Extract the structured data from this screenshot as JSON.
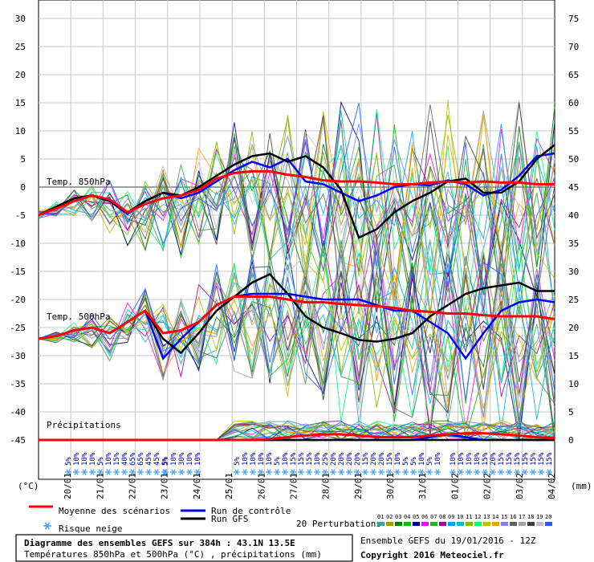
{
  "chart_data": {
    "type": "line",
    "title": "Diagramme des ensembles GEFS sur 384h : 43.1N 13.5E",
    "subtitle": "Températures 850hPa et 500hPa (°C) , précipitations (mm)",
    "left_axis": {
      "label": "(°C)",
      "ticks": [
        30,
        25,
        20,
        15,
        10,
        5,
        0,
        -5,
        -10,
        -15,
        -20,
        -25,
        -30,
        -35,
        -40,
        -45
      ]
    },
    "right_axis": {
      "label": "(mm)",
      "ticks": [
        75,
        70,
        65,
        60,
        55,
        50,
        45,
        40,
        35,
        30,
        25,
        20,
        15,
        10,
        5,
        0
      ]
    },
    "dates": [
      "20/01",
      "21/01",
      "22/01",
      "23/01",
      "24/01",
      "25/01",
      "26/01",
      "27/01",
      "28/01",
      "29/01",
      "30/01",
      "31/01",
      "01/02",
      "02/02",
      "03/02",
      "04/02"
    ],
    "panel_labels": {
      "t850": "Temp. 850hPa",
      "t500": "Temp. 500hPa",
      "precip": "Précipitations"
    },
    "snow_risk": [
      [
        "5%",
        "10%",
        "10%",
        "10%",
        "5%",
        "10%",
        "15%",
        "40%",
        "65%",
        "65%",
        "45%",
        "45%",
        "5%"
      ],
      [
        "5%",
        "10%",
        "30%",
        "10%",
        "10%"
      ],
      [
        "5%",
        "10%",
        "10%",
        "10%",
        "10%",
        "5%",
        "10%",
        "15%",
        "15%",
        "15%",
        "10%",
        "25%",
        "20%",
        "20%",
        "20%",
        "20%",
        "15%",
        "20%",
        "20%",
        "15%",
        "10%",
        "5%",
        "5%",
        "10%",
        "5%",
        "10%"
      ],
      [
        "10%",
        "10%",
        "10%",
        "10%",
        "15%",
        "20%",
        "15%",
        "15%",
        "15%",
        "15%",
        "15%",
        "15%",
        "15%"
      ]
    ],
    "series": [
      {
        "name": "Moyenne des scénarios",
        "color": "#ff0000",
        "t850": [
          -5,
          -3.8,
          -2.5,
          -1.5,
          -2.2,
          -4.5,
          -3,
          -2,
          -1.5,
          -0.5,
          1.5,
          2.5,
          2.8,
          2.8,
          2.2,
          1.8,
          1.2,
          1,
          1,
          0.8,
          0.5,
          0.5,
          0.8,
          1,
          0.8,
          1,
          0.8,
          0.8,
          0.5,
          0.5
        ],
        "t500": [
          -27,
          -26.5,
          -25.5,
          -25,
          -26,
          -24,
          -22,
          -26,
          -25.5,
          -24,
          -21,
          -19.5,
          -19.5,
          -19.5,
          -20,
          -20.5,
          -20.5,
          -20.8,
          -21,
          -21.2,
          -21.5,
          -22,
          -22.2,
          -22.5,
          -22.5,
          -22.8,
          -23,
          -23,
          -23,
          -23.5
        ],
        "precip": [
          0,
          0,
          0,
          0,
          0,
          0,
          0,
          0,
          0,
          0,
          0,
          0,
          0,
          0.2,
          0.5,
          0.8,
          1,
          1,
          0.8,
          0.5,
          0.5,
          0.5,
          0.8,
          1,
          1.2,
          1.2,
          1,
          0.8,
          0.5,
          0.3
        ]
      },
      {
        "name": "Run de contrôle",
        "color": "#0000ff",
        "t850": [
          -5,
          -3.5,
          -2,
          -1.5,
          -2.5,
          -4.8,
          -2.5,
          -1,
          -2,
          -1,
          1,
          3,
          4.5,
          3.5,
          5,
          1,
          0.5,
          -1,
          -2.5,
          -1.5,
          0,
          0.5,
          0.3,
          1.2,
          0.5,
          -1.5,
          -0.5,
          2,
          5.5,
          6
        ],
        "t500": [
          -27,
          -26.5,
          -25.5,
          -25,
          -26,
          -24,
          -22,
          -30.5,
          -27,
          -24,
          -21,
          -19.5,
          -19,
          -19,
          -19,
          -19.5,
          -20,
          -20,
          -20,
          -21,
          -22,
          -22,
          -24,
          -26,
          -30.5,
          -26,
          -22,
          -20.5,
          -20,
          -20.5
        ],
        "precip": [
          0,
          0,
          0,
          0,
          0,
          0,
          0,
          0,
          0,
          0,
          0,
          0,
          0,
          0,
          0,
          0,
          0,
          0,
          0,
          0,
          0,
          0,
          0.5,
          1,
          0.5,
          0,
          0,
          0,
          0,
          0
        ]
      },
      {
        "name": "Run GFS",
        "color": "#000000",
        "t850": [
          -5,
          -3.5,
          -2,
          -1.5,
          -2.5,
          -4.5,
          -2.5,
          -1,
          -1.5,
          0,
          2,
          4,
          5.5,
          6,
          4.5,
          5.5,
          3.5,
          -0.5,
          -9,
          -7.5,
          -4.5,
          -2.5,
          -1,
          1,
          1.5,
          -1,
          -1,
          1,
          5,
          7.5
        ],
        "t500": [
          -27,
          -26.5,
          -25.5,
          -25,
          -26,
          -24,
          -22,
          -27,
          -29.5,
          -26,
          -22,
          -19.5,
          -17,
          -15.5,
          -19,
          -23,
          -25,
          -26,
          -27.2,
          -27.5,
          -27,
          -26,
          -23,
          -21,
          -19,
          -18,
          -17.5,
          -17,
          -18.5,
          -18.5
        ],
        "precip": [
          0,
          0,
          0,
          0,
          0,
          0,
          0,
          0,
          0,
          0,
          0,
          0,
          0,
          0,
          0,
          0,
          0,
          0,
          0,
          0,
          0,
          0,
          0,
          0,
          0,
          0,
          0,
          0,
          0,
          0
        ]
      }
    ],
    "legend": {
      "mean": "Moyenne des scénarios",
      "control": "Run de contrôle",
      "gfs": "Run GFS",
      "snow": "Risque neige",
      "perturbations": "20 Perturbations",
      "perturbation_ids": [
        "01",
        "02",
        "03",
        "04",
        "05",
        "06",
        "07",
        "08",
        "09",
        "10",
        "11",
        "12",
        "13",
        "14",
        "15",
        "16",
        "17",
        "18",
        "19",
        "20"
      ],
      "perturbation_colors": [
        "#40a0a0",
        "#a0a000",
        "#008000",
        "#00c000",
        "#000080",
        "#ff00ff",
        "#40a040",
        "#a000a0",
        "#00a0ff",
        "#00c0c0",
        "#80c000",
        "#00ff80",
        "#c0c000",
        "#ffa000",
        "#8080ff",
        "#606060",
        "#a0a0a0",
        "#404040",
        "#c0c0c0",
        "#2060ff"
      ]
    },
    "footer": {
      "title": "Diagramme des ensembles GEFS sur 384h : 43.1N 13.5E",
      "subtitle": "Températures 850hPa et 500hPa (°C) , précipitations (mm)",
      "run": "Ensemble GEFS du 19/01/2016 - 12Z",
      "copyright": "Copyright 2016 Meteociel.fr"
    }
  }
}
